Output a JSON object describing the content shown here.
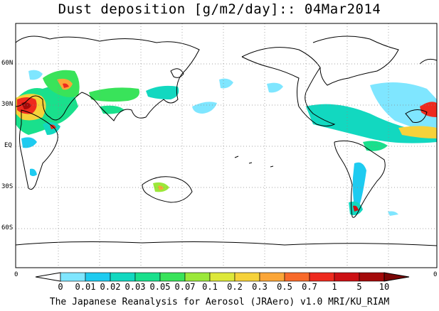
{
  "title": "Dust deposition [g/m2/day]:: 04Mar2014",
  "footer": "The Japanese Reanalysis for Aerosol (JRAero) v1.0 MRI/KU_RIAM",
  "map": {
    "lat_labels": [
      "60N",
      "30N",
      "EQ",
      "30S",
      "60S"
    ],
    "lon_labels": [
      "0",
      "0"
    ]
  },
  "colorbar": {
    "labels": [
      "0",
      "0.01",
      "0.02",
      "0.03",
      "0.05",
      "0.07",
      "0.1",
      "0.2",
      "0.3",
      "0.5",
      "0.7",
      "1",
      "5",
      "10"
    ],
    "colors": [
      "#ffffff",
      "#7fe6ff",
      "#1ecbf0",
      "#12d8c0",
      "#19e08c",
      "#39e35a",
      "#9be83a",
      "#dde83a",
      "#f6d23a",
      "#fba638",
      "#f86a2a",
      "#ee2a1e",
      "#cc1014",
      "#a40a0a",
      "#7a0606"
    ]
  }
}
